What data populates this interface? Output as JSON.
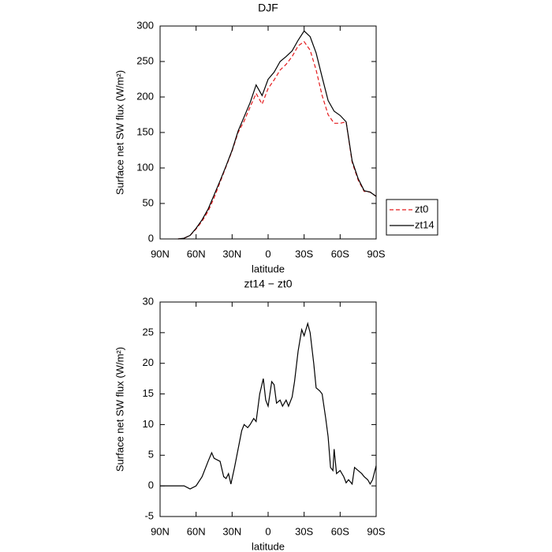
{
  "chart_data": [
    {
      "type": "line",
      "title": "DJF",
      "xlabel": "latitude",
      "ylabel": "Surface net SW flux (W/m²)",
      "x": [
        90,
        85,
        80,
        75,
        70,
        65,
        60,
        55,
        50,
        45,
        40,
        35,
        30,
        25,
        20,
        15,
        10,
        5,
        0,
        -5,
        -10,
        -15,
        -20,
        -25,
        -30,
        -35,
        -40,
        -45,
        -50,
        -55,
        -60,
        -65,
        -70,
        -75,
        -80,
        -85,
        -90
      ],
      "series": [
        {
          "name": "zt0",
          "color": "#e41a1c",
          "dash": true,
          "values": [
            null,
            null,
            null,
            0,
            1,
            5,
            14,
            25,
            39,
            58,
            80,
            102,
            124,
            150,
            166,
            186,
            205,
            190,
            212,
            224,
            238,
            246,
            257,
            272,
            278,
            266,
            238,
            202,
            175,
            163,
            163,
            165,
            108,
            83,
            67,
            66,
            60
          ]
        },
        {
          "name": "zt14",
          "color": "#000000",
          "dash": false,
          "values": [
            null,
            null,
            null,
            0,
            1,
            5,
            15,
            27,
            42,
            62,
            82,
            103,
            125,
            152,
            172,
            192,
            217,
            202,
            225,
            235,
            250,
            257,
            265,
            280,
            293,
            285,
            262,
            228,
            195,
            180,
            174,
            165,
            110,
            85,
            68,
            66,
            60
          ]
        }
      ],
      "xlim": [
        90,
        -90
      ],
      "xticks": [
        {
          "value": 90,
          "label": "90N"
        },
        {
          "value": 60,
          "label": "60N"
        },
        {
          "value": 30,
          "label": "30N"
        },
        0,
        {
          "value": -30,
          "label": "30S"
        },
        {
          "value": -60,
          "label": "60S"
        },
        {
          "value": -90,
          "label": "90S"
        }
      ],
      "ylim": [
        0,
        300
      ],
      "yticks": [
        0,
        50,
        100,
        150,
        200,
        250,
        300
      ],
      "legend": "right"
    },
    {
      "type": "line",
      "title": "zt14 − zt0",
      "xlabel": "latitude",
      "ylabel": "Surface net SW flux (W/m²)",
      "x": [
        90,
        80,
        75,
        70,
        65,
        60,
        55,
        50,
        47,
        45,
        40,
        37,
        35,
        33,
        31,
        28,
        25,
        22,
        20,
        17,
        15,
        12,
        10,
        7,
        4,
        2,
        0,
        -3,
        -5,
        -7,
        -10,
        -12,
        -15,
        -17,
        -20,
        -22,
        -25,
        -28,
        -30,
        -33,
        -35,
        -38,
        -40,
        -43,
        -45,
        -48,
        -50,
        -52,
        -54,
        -55,
        -57,
        -60,
        -63,
        -65,
        -67,
        -70,
        -72,
        -75,
        -78,
        -80,
        -83,
        -85,
        -87,
        -90
      ],
      "values": [
        0,
        0,
        0,
        0,
        -0.5,
        0,
        1.5,
        4,
        5.4,
        4.5,
        4,
        1.5,
        1.2,
        2,
        0.3,
        3,
        6,
        9,
        10,
        9.5,
        10,
        11,
        10.5,
        15,
        17.5,
        14,
        13,
        17,
        16.5,
        13.5,
        14,
        13,
        14,
        13,
        14.5,
        17,
        22,
        25.5,
        24.5,
        26.5,
        25,
        20,
        16,
        15.5,
        15,
        11,
        8,
        3,
        2.5,
        6,
        2,
        2.5,
        1.5,
        0.5,
        1,
        0.3,
        3,
        2.5,
        2,
        1.5,
        1,
        0.3,
        1,
        3.3
      ],
      "color": "#000000",
      "xlim": [
        90,
        -90
      ],
      "xticks": [
        {
          "value": 90,
          "label": "90N"
        },
        {
          "value": 60,
          "label": "60N"
        },
        {
          "value": 30,
          "label": "30N"
        },
        0,
        {
          "value": -30,
          "label": "30S"
        },
        {
          "value": -60,
          "label": "60S"
        },
        {
          "value": -90,
          "label": "90S"
        }
      ],
      "ylim": [
        -5,
        30
      ],
      "yticks": [
        -5,
        0,
        5,
        10,
        15,
        20,
        25,
        30
      ]
    }
  ]
}
